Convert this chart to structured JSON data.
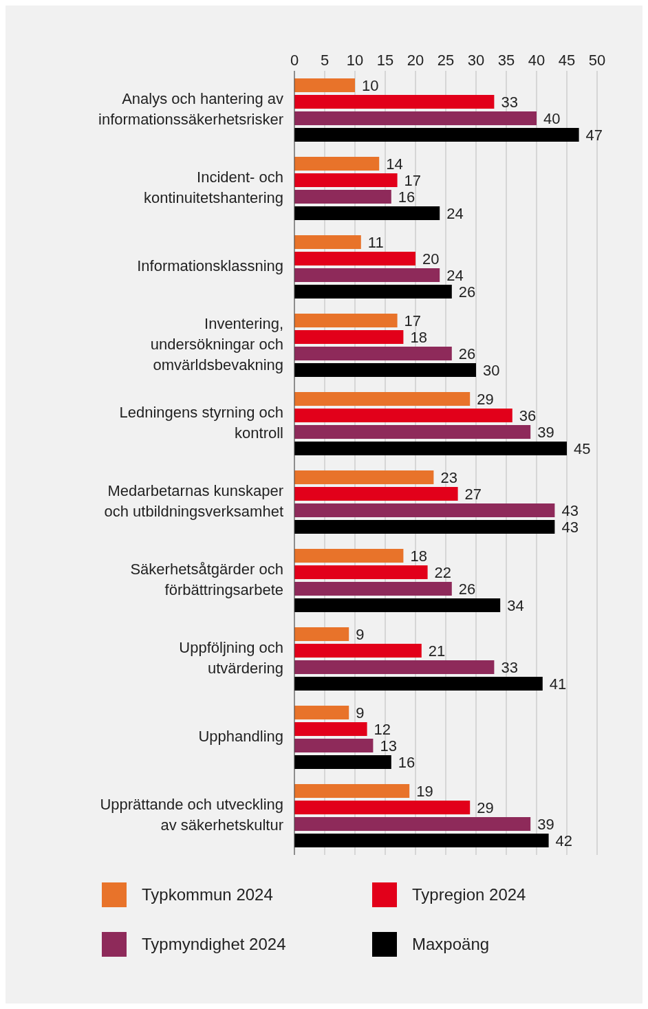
{
  "chart_data": {
    "type": "bar",
    "orientation": "horizontal",
    "categories": [
      "Analys och hantering av informationssäkerhetsrisker",
      "Incident- och kontinuitetshantering",
      "Informationsklassning",
      "Inventering, undersökningar och omvärldsbevakning",
      "Ledningens styrning och kontroll",
      "Medarbetarnas kunskaper och utbildningsverksamhet",
      "Säkerhetsåtgärder och förbättringsarbete",
      "Uppföljning och utvärdering",
      "Upphandling",
      "Upprättande och utveckling av säkerhetskultur"
    ],
    "series": [
      {
        "name": "Typkommun 2024",
        "color": "#e8732a",
        "values": [
          10,
          14,
          11,
          17,
          29,
          23,
          18,
          9,
          9,
          19
        ]
      },
      {
        "name": "Typregion 2024",
        "color": "#e2001a",
        "values": [
          33,
          17,
          20,
          18,
          36,
          27,
          22,
          21,
          12,
          29
        ]
      },
      {
        "name": "Typmyndighet 2024",
        "color": "#8e2a5a",
        "values": [
          40,
          16,
          24,
          26,
          39,
          43,
          26,
          33,
          13,
          39
        ]
      },
      {
        "name": "Maxpoäng",
        "color": "#000000",
        "values": [
          47,
          24,
          26,
          30,
          45,
          43,
          34,
          41,
          16,
          42
        ]
      }
    ],
    "xlim": [
      0,
      50
    ],
    "xticks": [
      0,
      5,
      10,
      15,
      20,
      25,
      30,
      35,
      40,
      45,
      50
    ],
    "grid": "x",
    "legend": "bottom",
    "data_labels": true
  }
}
